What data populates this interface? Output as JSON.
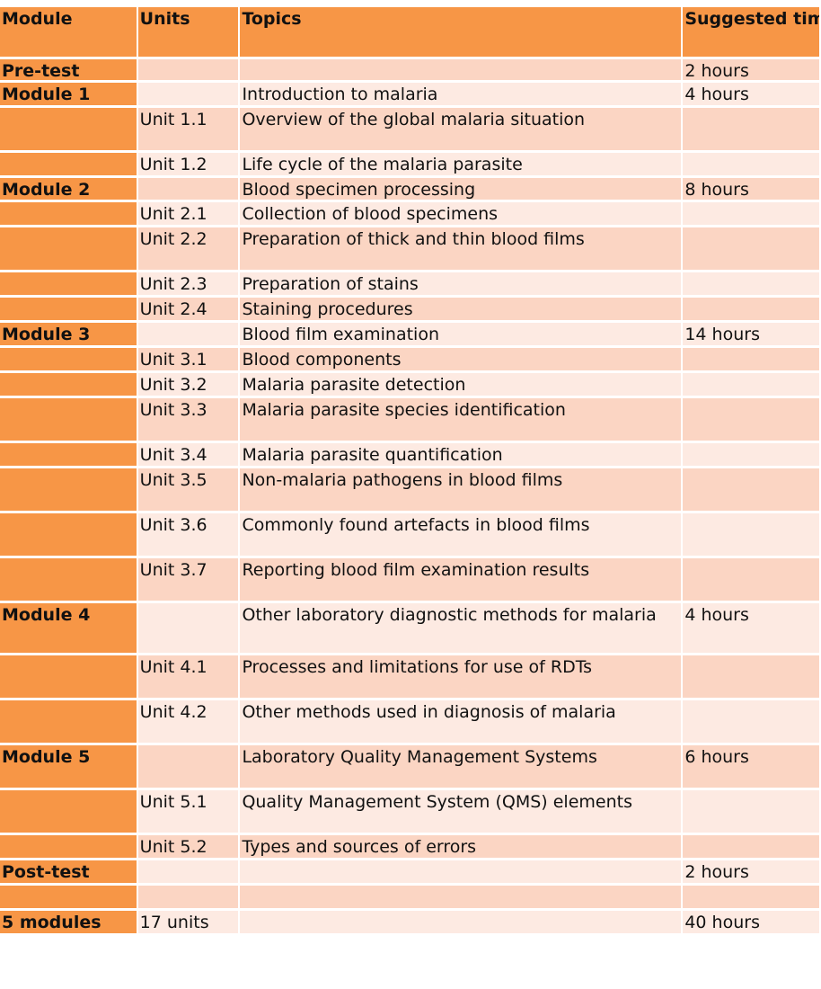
{
  "columns": [
    "Module",
    "Units",
    "Topics",
    "Suggested time"
  ],
  "rows": [
    {
      "module": "Pre-test",
      "unit": "",
      "topic": "",
      "time": "2 hours"
    },
    {
      "module": "Module 1",
      "unit": "",
      "topic": "Introduction to malaria",
      "time": "4 hours"
    },
    {
      "module": "",
      "unit": "Unit 1.1",
      "topic": "Overview of the global malaria situation",
      "time": ""
    },
    {
      "module": "",
      "unit": "Unit 1.2",
      "topic": "Life cycle of the malaria parasite",
      "time": ""
    },
    {
      "module": "Module 2",
      "unit": "",
      "topic": "Blood specimen processing",
      "time": "8 hours"
    },
    {
      "module": "",
      "unit": "Unit 2.1",
      "topic": "Collection of blood specimens",
      "time": ""
    },
    {
      "module": "",
      "unit": "Unit 2.2",
      "topic": "Preparation of thick and thin blood films",
      "time": ""
    },
    {
      "module": "",
      "unit": "Unit 2.3",
      "topic": "Preparation of stains",
      "time": ""
    },
    {
      "module": "",
      "unit": "Unit 2.4",
      "topic": "Staining procedures",
      "time": ""
    },
    {
      "module": "Module 3",
      "unit": "",
      "topic": "Blood film examination",
      "time": "14 hours"
    },
    {
      "module": "",
      "unit": "Unit 3.1",
      "topic": "Blood components",
      "time": ""
    },
    {
      "module": "",
      "unit": "Unit 3.2",
      "topic": "Malaria parasite detection",
      "time": ""
    },
    {
      "module": "",
      "unit": "Unit 3.3",
      "topic": "Malaria parasite species identification",
      "time": ""
    },
    {
      "module": "",
      "unit": "Unit 3.4",
      "topic": "Malaria parasite quantification",
      "time": ""
    },
    {
      "module": "",
      "unit": "Unit 3.5",
      "topic": "Non-malaria pathogens in blood films",
      "time": ""
    },
    {
      "module": "",
      "unit": "Unit 3.6",
      "topic": "Commonly found artefacts in blood films",
      "time": ""
    },
    {
      "module": "",
      "unit": "Unit 3.7",
      "topic": "Reporting blood film examination results",
      "time": ""
    },
    {
      "module": "Module 4",
      "unit": "",
      "topic": "Other laboratory diagnostic methods for malaria",
      "time": "4 hours"
    },
    {
      "module": "",
      "unit": "Unit 4.1",
      "topic": "Processes and limitations for use of RDTs",
      "time": ""
    },
    {
      "module": "",
      "unit": "Unit 4.2",
      "topic": "Other methods used in diagnosis of malaria",
      "time": ""
    },
    {
      "module": "Module 5",
      "unit": "",
      "topic": "Laboratory Quality Management Systems",
      "time": "6 hours"
    },
    {
      "module": "",
      "unit": "Unit 5.1",
      "topic": "Quality Management System (QMS) elements",
      "time": ""
    },
    {
      "module": "",
      "unit": "Unit 5.2",
      "topic": "Types and sources of errors",
      "time": ""
    },
    {
      "module": "Post-test",
      "unit": "",
      "topic": "",
      "time": "2 hours"
    },
    {
      "module": "",
      "unit": "",
      "topic": "",
      "time": ""
    },
    {
      "module": "5 modules",
      "unit": "17 units",
      "topic": "",
      "time": "40 hours"
    }
  ]
}
